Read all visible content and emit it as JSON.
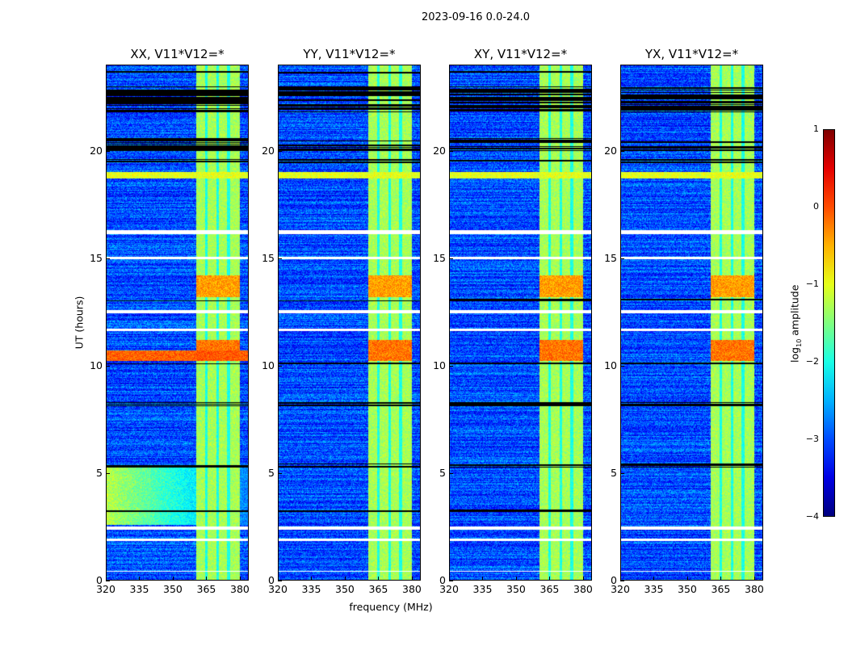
{
  "suptitle": "2023-09-16 0.0-24.0",
  "chart_data": {
    "type": "heatmap",
    "title": "2023-09-16 0.0-24.0",
    "xlabel": "frequency (MHz)",
    "ylabel": "UT (hours)",
    "xlim": [
      320,
      384
    ],
    "ylim": [
      0,
      24
    ],
    "x_ticks": [
      "320",
      "335",
      "350",
      "365",
      "380"
    ],
    "x_tick_values": [
      320,
      335,
      350,
      365,
      380
    ],
    "y_ticks": [
      "0",
      "5",
      "10",
      "15",
      "20"
    ],
    "y_tick_values": [
      0,
      5,
      10,
      15,
      20
    ],
    "panels": [
      {
        "title": "XX, V11*V12=*",
        "key": "XX"
      },
      {
        "title": "YY, V11*V12=*",
        "key": "YY"
      },
      {
        "title": "XY, V11*V12=*",
        "key": "XY"
      },
      {
        "title": "YX, V11*V12=*",
        "key": "YX"
      }
    ],
    "colorbar": {
      "label": "log10 amplitude",
      "label_main": "log",
      "label_sub": "10",
      "label_rest": " amplitude",
      "range": [
        -4,
        1
      ],
      "ticks": [
        "1",
        "0",
        "−1",
        "−2",
        "−3",
        "−4"
      ],
      "tick_values": [
        1,
        0,
        -1,
        -2,
        -3,
        -4
      ],
      "colormap": "jet"
    },
    "background_level": -3.0,
    "rfi_band": {
      "freq_mhz": [
        360.5,
        380
      ],
      "level": -1.3,
      "gaps_mhz": [
        365,
        370,
        375
      ]
    },
    "blank_rows_hours": [
      [
        16.1,
        16.3
      ],
      [
        14.95,
        15.05
      ],
      [
        12.45,
        12.6
      ],
      [
        11.6,
        11.7
      ],
      [
        2.35,
        2.5
      ],
      [
        1.85,
        1.95
      ],
      [
        0.4,
        0.45
      ]
    ],
    "flagged_rows_hours": [
      [
        23.6,
        23.7
      ],
      [
        21.8,
        23.0
      ],
      [
        20.0,
        20.6
      ],
      [
        19.4,
        19.6
      ],
      [
        13.0,
        13.1
      ],
      [
        10.05,
        10.15
      ],
      [
        8.1,
        8.3
      ],
      [
        5.25,
        5.45
      ],
      [
        3.2,
        3.3
      ]
    ],
    "strong_features": [
      {
        "panel": "XX",
        "hours": [
          10.2,
          10.7
        ],
        "freq_mhz": [
          320,
          384
        ],
        "level": -0.1
      },
      {
        "panel": "all",
        "hours": [
          18.7,
          19.0
        ],
        "freq_mhz": [
          320,
          384
        ],
        "level": -1.0
      },
      {
        "panel": "XX",
        "hours": [
          2.6,
          5.3
        ],
        "freq_mhz": [
          320,
          384
        ],
        "level": -1.2
      },
      {
        "panel": "all",
        "hours": [
          10.2,
          11.2
        ],
        "freq_mhz": [
          360.5,
          380
        ],
        "level": -0.2
      },
      {
        "panel": "all",
        "hours": [
          13.2,
          14.2
        ],
        "freq_mhz": [
          360.5,
          380
        ],
        "level": -0.4
      }
    ]
  }
}
